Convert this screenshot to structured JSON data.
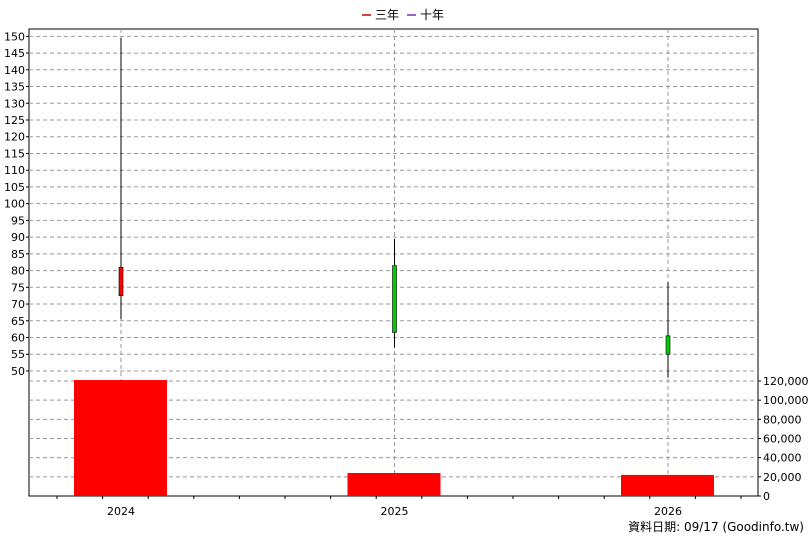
{
  "legend": [
    {
      "label": "三年",
      "color": "#cc0000"
    },
    {
      "label": "十年",
      "color": "#7b2fbf"
    }
  ],
  "footer": "資料日期: 09/17  (Goodinfo.tw)",
  "chart_data": [
    {
      "type": "candlestick",
      "x": [
        "2024",
        "2025",
        "2026"
      ],
      "open": [
        72.5,
        81.5,
        60.5
      ],
      "close": [
        81.0,
        61.5,
        55.0
      ],
      "high": [
        149.5,
        89.5,
        76.5
      ],
      "low": [
        65.5,
        57.0,
        48.0
      ],
      "ylim": [
        47,
        151
      ],
      "yticks": [
        50,
        55,
        60,
        65,
        70,
        75,
        80,
        85,
        90,
        95,
        100,
        105,
        110,
        115,
        120,
        125,
        130,
        135,
        140,
        145,
        150
      ],
      "colors": {
        "up": "#ff0000",
        "down": "#00cc00"
      },
      "grid": true,
      "legend_position": "top-center"
    },
    {
      "type": "bar",
      "categories": [
        "2024",
        "2025",
        "2026"
      ],
      "values": [
        121000,
        24000,
        22000
      ],
      "ylim": [
        0,
        120000
      ],
      "yticks": [
        0,
        20000,
        40000,
        60000,
        80000,
        100000,
        120000
      ],
      "ytick_labels": [
        "0",
        "20,000",
        "40,000",
        "60,000",
        "80,000",
        "100,000",
        "120,000"
      ],
      "color": "#ff0000",
      "grid": true
    }
  ]
}
